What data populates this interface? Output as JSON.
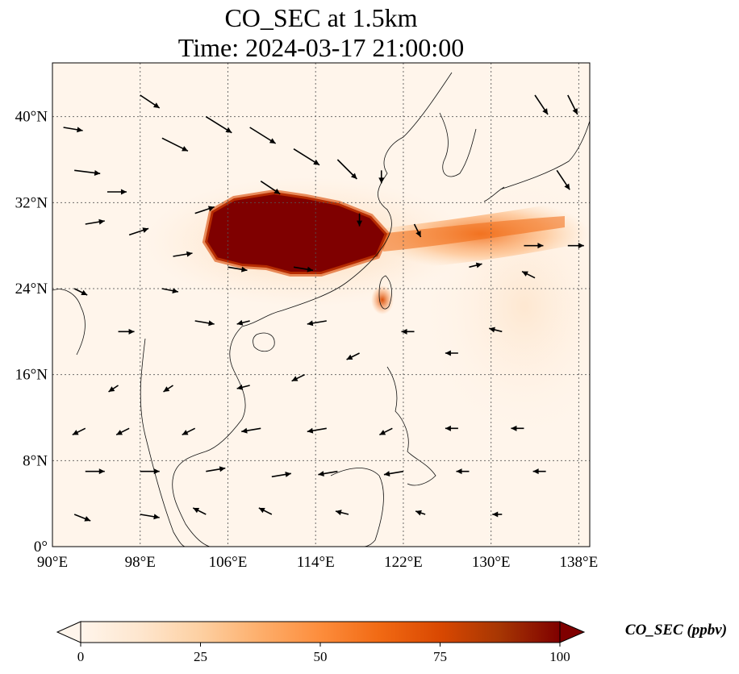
{
  "title": {
    "line1": "CO_SEC at 1.5km",
    "line2": "Time: 2024-03-17 21:00:00"
  },
  "map": {
    "lon_range": [
      90,
      139
    ],
    "lat_range": [
      0,
      45
    ],
    "x_ticks": [
      {
        "value": 90,
        "label": "90°E"
      },
      {
        "value": 98,
        "label": "98°E"
      },
      {
        "value": 106,
        "label": "106°E"
      },
      {
        "value": 114,
        "label": "114°E"
      },
      {
        "value": 122,
        "label": "122°E"
      },
      {
        "value": 130,
        "label": "130°E"
      },
      {
        "value": 138,
        "label": "138°E"
      }
    ],
    "y_ticks": [
      {
        "value": 0,
        "label": "0°"
      },
      {
        "value": 8,
        "label": "8°N"
      },
      {
        "value": 16,
        "label": "16°N"
      },
      {
        "value": 24,
        "label": "24°N"
      },
      {
        "value": 32,
        "label": "32°N"
      },
      {
        "value": 40,
        "label": "40°N"
      }
    ],
    "gridlines": true,
    "background_color": "#fff5eb"
  },
  "colorbar": {
    "label": "CO_SEC (ppbv)",
    "range": [
      0,
      100
    ],
    "ticks": [
      {
        "value": 0,
        "label": "0"
      },
      {
        "value": 25,
        "label": "25"
      },
      {
        "value": 50,
        "label": "50"
      },
      {
        "value": 75,
        "label": "75"
      },
      {
        "value": 100,
        "label": "100"
      }
    ],
    "colors": [
      "#fff5eb",
      "#fee6ce",
      "#fdd0a2",
      "#fdae6b",
      "#fd8d3c",
      "#f16913",
      "#d94801",
      "#a63603",
      "#7f0000"
    ],
    "extend": "both"
  },
  "chart_data": {
    "type": "heatmap",
    "variable": "CO_SEC",
    "units": "ppbv",
    "level": "1.5km",
    "time": "2024-03-17 21:00:00",
    "plumes": [
      {
        "region": "central-east China core",
        "lon": [
          104,
          118
        ],
        "lat": [
          25,
          32.5
        ],
        "value": 100
      },
      {
        "region": "outflow east of China",
        "lon": [
          118,
          139
        ],
        "lat": [
          25.5,
          30.5
        ],
        "value": 40
      },
      {
        "region": "northern Taiwan hotspot",
        "lon": [
          119.5,
          121.5
        ],
        "lat": [
          22,
          24
        ],
        "value": 85
      },
      {
        "region": "haze over western North Pacific",
        "lon": [
          124,
          139
        ],
        "lat": [
          14,
          30
        ],
        "value": 15
      }
    ],
    "wind_vectors": [
      {
        "lon": 91,
        "lat": 39,
        "u": 3,
        "v": -0.5
      },
      {
        "lon": 92,
        "lat": 35,
        "u": 4,
        "v": -0.5
      },
      {
        "lon": 93,
        "lat": 30,
        "u": 3,
        "v": 0.5
      },
      {
        "lon": 92,
        "lat": 24,
        "u": 2,
        "v": -1
      },
      {
        "lon": 95,
        "lat": 33,
        "u": 3,
        "v": 0
      },
      {
        "lon": 98,
        "lat": 42,
        "u": 3,
        "v": -2
      },
      {
        "lon": 100,
        "lat": 38,
        "u": 4,
        "v": -2
      },
      {
        "lon": 104,
        "lat": 40,
        "u": 4,
        "v": -2.5
      },
      {
        "lon": 108,
        "lat": 39,
        "u": 4,
        "v": -2.5
      },
      {
        "lon": 112,
        "lat": 37,
        "u": 4,
        "v": -2.5
      },
      {
        "lon": 116,
        "lat": 36,
        "u": 3,
        "v": -3
      },
      {
        "lon": 109,
        "lat": 34,
        "u": 3,
        "v": -2
      },
      {
        "lon": 97,
        "lat": 29,
        "u": 3,
        "v": 1
      },
      {
        "lon": 101,
        "lat": 27,
        "u": 3,
        "v": 0.5
      },
      {
        "lon": 103,
        "lat": 31,
        "u": 3,
        "v": 1
      },
      {
        "lon": 118,
        "lat": 31,
        "u": 0,
        "v": -2
      },
      {
        "lon": 120,
        "lat": 35,
        "u": 0,
        "v": -2
      },
      {
        "lon": 123,
        "lat": 30,
        "u": 1,
        "v": -2
      },
      {
        "lon": 123,
        "lat": 20,
        "u": -2,
        "v": 0
      },
      {
        "lon": 127,
        "lat": 18,
        "u": -2,
        "v": 0
      },
      {
        "lon": 131,
        "lat": 20,
        "u": -2,
        "v": 0.5
      },
      {
        "lon": 134,
        "lat": 25,
        "u": -2,
        "v": 1
      },
      {
        "lon": 136,
        "lat": 35,
        "u": 2,
        "v": -3
      },
      {
        "lon": 134,
        "lat": 42,
        "u": 2,
        "v": -3
      },
      {
        "lon": 137,
        "lat": 42,
        "u": 1.5,
        "v": -3
      },
      {
        "lon": 133,
        "lat": 28,
        "u": 3,
        "v": 0
      },
      {
        "lon": 137,
        "lat": 28,
        "u": 2.5,
        "v": 0
      },
      {
        "lon": 128,
        "lat": 26,
        "u": 2,
        "v": 0.5
      },
      {
        "lon": 112,
        "lat": 26,
        "u": 3,
        "v": -0.5
      },
      {
        "lon": 106,
        "lat": 26,
        "u": 3,
        "v": -0.5
      },
      {
        "lon": 100,
        "lat": 24,
        "u": 2.5,
        "v": -0.5
      },
      {
        "lon": 96,
        "lat": 20,
        "u": 2.5,
        "v": 0
      },
      {
        "lon": 103,
        "lat": 21,
        "u": 3,
        "v": -0.5
      },
      {
        "lon": 108,
        "lat": 21,
        "u": -2,
        "v": -0.5
      },
      {
        "lon": 115,
        "lat": 21,
        "u": -3,
        "v": -0.5
      },
      {
        "lon": 118,
        "lat": 18,
        "u": -2,
        "v": -1
      },
      {
        "lon": 113,
        "lat": 16,
        "u": -2,
        "v": -1
      },
      {
        "lon": 108,
        "lat": 15,
        "u": -2,
        "v": -0.5
      },
      {
        "lon": 101,
        "lat": 15,
        "u": -1.5,
        "v": -1
      },
      {
        "lon": 96,
        "lat": 15,
        "u": -1.5,
        "v": -1
      },
      {
        "lon": 93,
        "lat": 11,
        "u": -2,
        "v": -1
      },
      {
        "lon": 97,
        "lat": 11,
        "u": -2,
        "v": -1
      },
      {
        "lon": 103,
        "lat": 11,
        "u": -2,
        "v": -1
      },
      {
        "lon": 109,
        "lat": 11,
        "u": -3,
        "v": -0.5
      },
      {
        "lon": 115,
        "lat": 11,
        "u": -3,
        "v": -0.5
      },
      {
        "lon": 121,
        "lat": 11,
        "u": -2,
        "v": -1
      },
      {
        "lon": 127,
        "lat": 11,
        "u": -2,
        "v": 0
      },
      {
        "lon": 133,
        "lat": 11,
        "u": -2,
        "v": 0
      },
      {
        "lon": 93,
        "lat": 7,
        "u": 3,
        "v": 0
      },
      {
        "lon": 98,
        "lat": 7,
        "u": 3,
        "v": 0
      },
      {
        "lon": 104,
        "lat": 7,
        "u": 3,
        "v": 0.5
      },
      {
        "lon": 110,
        "lat": 6.5,
        "u": 3,
        "v": 0.5
      },
      {
        "lon": 116,
        "lat": 7,
        "u": -3,
        "v": -0.5
      },
      {
        "lon": 122,
        "lat": 7,
        "u": -3,
        "v": -0.5
      },
      {
        "lon": 128,
        "lat": 7,
        "u": -2,
        "v": 0
      },
      {
        "lon": 135,
        "lat": 7,
        "u": -2,
        "v": 0
      },
      {
        "lon": 92,
        "lat": 3,
        "u": 2.5,
        "v": -1
      },
      {
        "lon": 98,
        "lat": 3,
        "u": 3,
        "v": -0.5
      },
      {
        "lon": 104,
        "lat": 3,
        "u": -2,
        "v": 1
      },
      {
        "lon": 110,
        "lat": 3,
        "u": -2,
        "v": 1
      },
      {
        "lon": 117,
        "lat": 3,
        "u": -2,
        "v": 0.5
      },
      {
        "lon": 124,
        "lat": 3,
        "u": -1.5,
        "v": 0.5
      },
      {
        "lon": 131,
        "lat": 3,
        "u": -1.5,
        "v": 0
      }
    ]
  }
}
